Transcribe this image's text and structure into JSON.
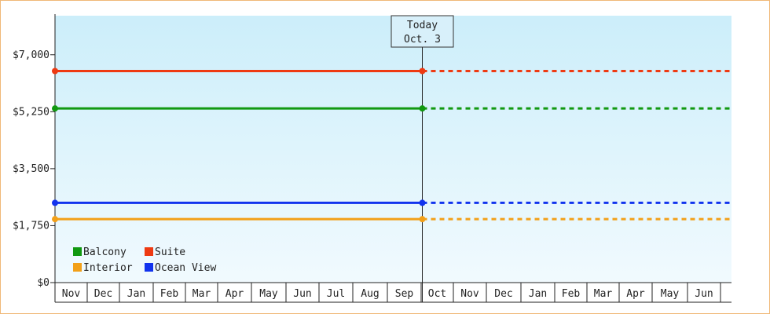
{
  "chart_data": {
    "type": "line",
    "yticks": [
      "$0",
      "$1,750",
      "$3,500",
      "$5,250",
      "$7,000"
    ],
    "ytick_values": [
      0,
      1750,
      3500,
      5250,
      7000
    ],
    "ylim": [
      0,
      8200
    ],
    "months": [
      "Nov",
      "Dec",
      "Jan",
      "Feb",
      "Mar",
      "Apr",
      "May",
      "Jun",
      "Jul",
      "Aug",
      "Sep",
      "Oct",
      "Nov",
      "Dec",
      "Jan",
      "Feb",
      "Mar",
      "Apr",
      "May",
      "Jun"
    ],
    "today_index": 11,
    "today_label": [
      "Today",
      "Oct. 3"
    ],
    "series": [
      {
        "name": "Suite",
        "color": "#ee3a12",
        "value": 6500
      },
      {
        "name": "Balcony",
        "color": "#119911",
        "value": 5350
      },
      {
        "name": "Ocean View",
        "color": "#1133ee",
        "value": 2450
      },
      {
        "name": "Interior",
        "color": "#f2a019",
        "value": 1950
      }
    ],
    "legend": [
      [
        "Balcony",
        "Suite"
      ],
      [
        "Interior",
        "Ocean View"
      ]
    ],
    "grid": false,
    "legend_position": "bottom-left",
    "background_gradient": [
      "#cceefa",
      "#f1fafe"
    ]
  }
}
